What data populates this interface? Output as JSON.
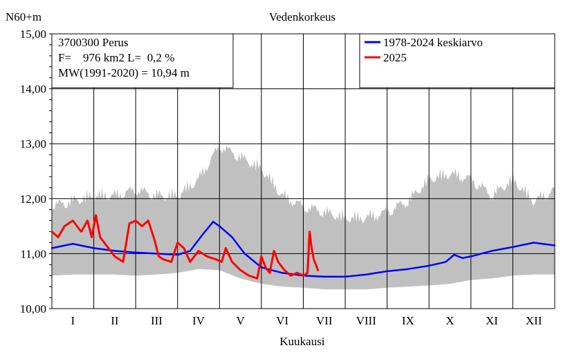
{
  "chart_data": {
    "type": "line",
    "title": "Vedenkorkeus",
    "ylabel": "N60+m",
    "xlabel": "Kuukausi",
    "ylim": [
      10.0,
      15.0
    ],
    "yticks": [
      "10,00",
      "11,00",
      "12,00",
      "13,00",
      "14,00",
      "15,00"
    ],
    "categories": [
      "I",
      "II",
      "III",
      "IV",
      "V",
      "VI",
      "VII",
      "VIII",
      "IX",
      "X",
      "XI",
      "XII"
    ],
    "grid": true,
    "legend_position": "top-right",
    "info": {
      "station": "3700300 Perus",
      "area": "F=    976 km2 L=  0,2 %",
      "mean": "MW(1991-2020) = 10,94 m"
    },
    "x_unit": "month (decimal, 0 = 1 Jan, 12 = 31 Dec)",
    "envelope": {
      "x": [
        0,
        0.5,
        1,
        1.5,
        2,
        2.5,
        3,
        3.5,
        4,
        4.5,
        5,
        5.5,
        6,
        6.5,
        7,
        7.5,
        8,
        8.5,
        9,
        9.5,
        10,
        10.5,
        11,
        11.5,
        12
      ],
      "min": [
        10.6,
        10.62,
        10.62,
        10.62,
        10.6,
        10.62,
        10.65,
        10.72,
        10.7,
        10.55,
        10.45,
        10.4,
        10.38,
        10.35,
        10.35,
        10.35,
        10.38,
        10.4,
        10.42,
        10.45,
        10.52,
        10.55,
        10.6,
        10.62,
        10.62
      ],
      "max": [
        11.9,
        12.0,
        12.1,
        12.1,
        12.2,
        12.1,
        12.1,
        12.4,
        13.0,
        12.8,
        12.6,
        12.1,
        11.9,
        11.8,
        11.7,
        11.7,
        11.8,
        12.0,
        12.4,
        12.5,
        12.4,
        12.1,
        12.4,
        12.0,
        12.2
      ]
    },
    "series": [
      {
        "name": "1978-2024 keskiarvo",
        "color": "#0000ff",
        "x": [
          0,
          0.5,
          1,
          1.5,
          2,
          2.5,
          3,
          3.3,
          3.6,
          3.85,
          4,
          4.3,
          4.6,
          5,
          5.5,
          6,
          6.5,
          7,
          7.5,
          8,
          8.5,
          9,
          9.4,
          9.6,
          9.8,
          10,
          10.5,
          11,
          11.5,
          12
        ],
        "y": [
          11.1,
          11.18,
          11.1,
          11.05,
          11.02,
          11.0,
          10.98,
          11.05,
          11.35,
          11.58,
          11.5,
          11.3,
          11.0,
          10.75,
          10.65,
          10.6,
          10.58,
          10.58,
          10.62,
          10.68,
          10.72,
          10.78,
          10.85,
          10.98,
          10.92,
          10.95,
          11.05,
          11.12,
          11.2,
          11.15
        ]
      },
      {
        "name": "2025",
        "color": "#ff0000",
        "x": [
          0,
          0.15,
          0.3,
          0.5,
          0.7,
          0.85,
          0.95,
          1.05,
          1.15,
          1.3,
          1.5,
          1.7,
          1.85,
          2.0,
          2.15,
          2.3,
          2.45,
          2.55,
          2.65,
          2.85,
          3.0,
          3.15,
          3.3,
          3.5,
          3.7,
          3.9,
          4.05,
          4.15,
          4.3,
          4.5,
          4.7,
          4.9,
          5.0,
          5.1,
          5.2,
          5.3,
          5.4,
          5.55,
          5.7,
          5.85,
          6.0,
          6.1,
          6.15,
          6.2,
          6.25,
          6.35
        ],
        "y": [
          11.4,
          11.3,
          11.5,
          11.6,
          11.4,
          11.6,
          11.3,
          11.7,
          11.3,
          11.15,
          10.95,
          10.85,
          11.55,
          11.6,
          11.5,
          11.6,
          11.25,
          10.95,
          10.9,
          10.85,
          11.2,
          11.1,
          10.85,
          11.05,
          10.95,
          10.9,
          10.85,
          11.1,
          10.85,
          10.7,
          10.6,
          10.55,
          10.95,
          10.75,
          10.65,
          11.05,
          10.85,
          10.7,
          10.6,
          10.65,
          10.6,
          10.65,
          11.4,
          11.1,
          10.9,
          10.7
        ]
      }
    ]
  }
}
